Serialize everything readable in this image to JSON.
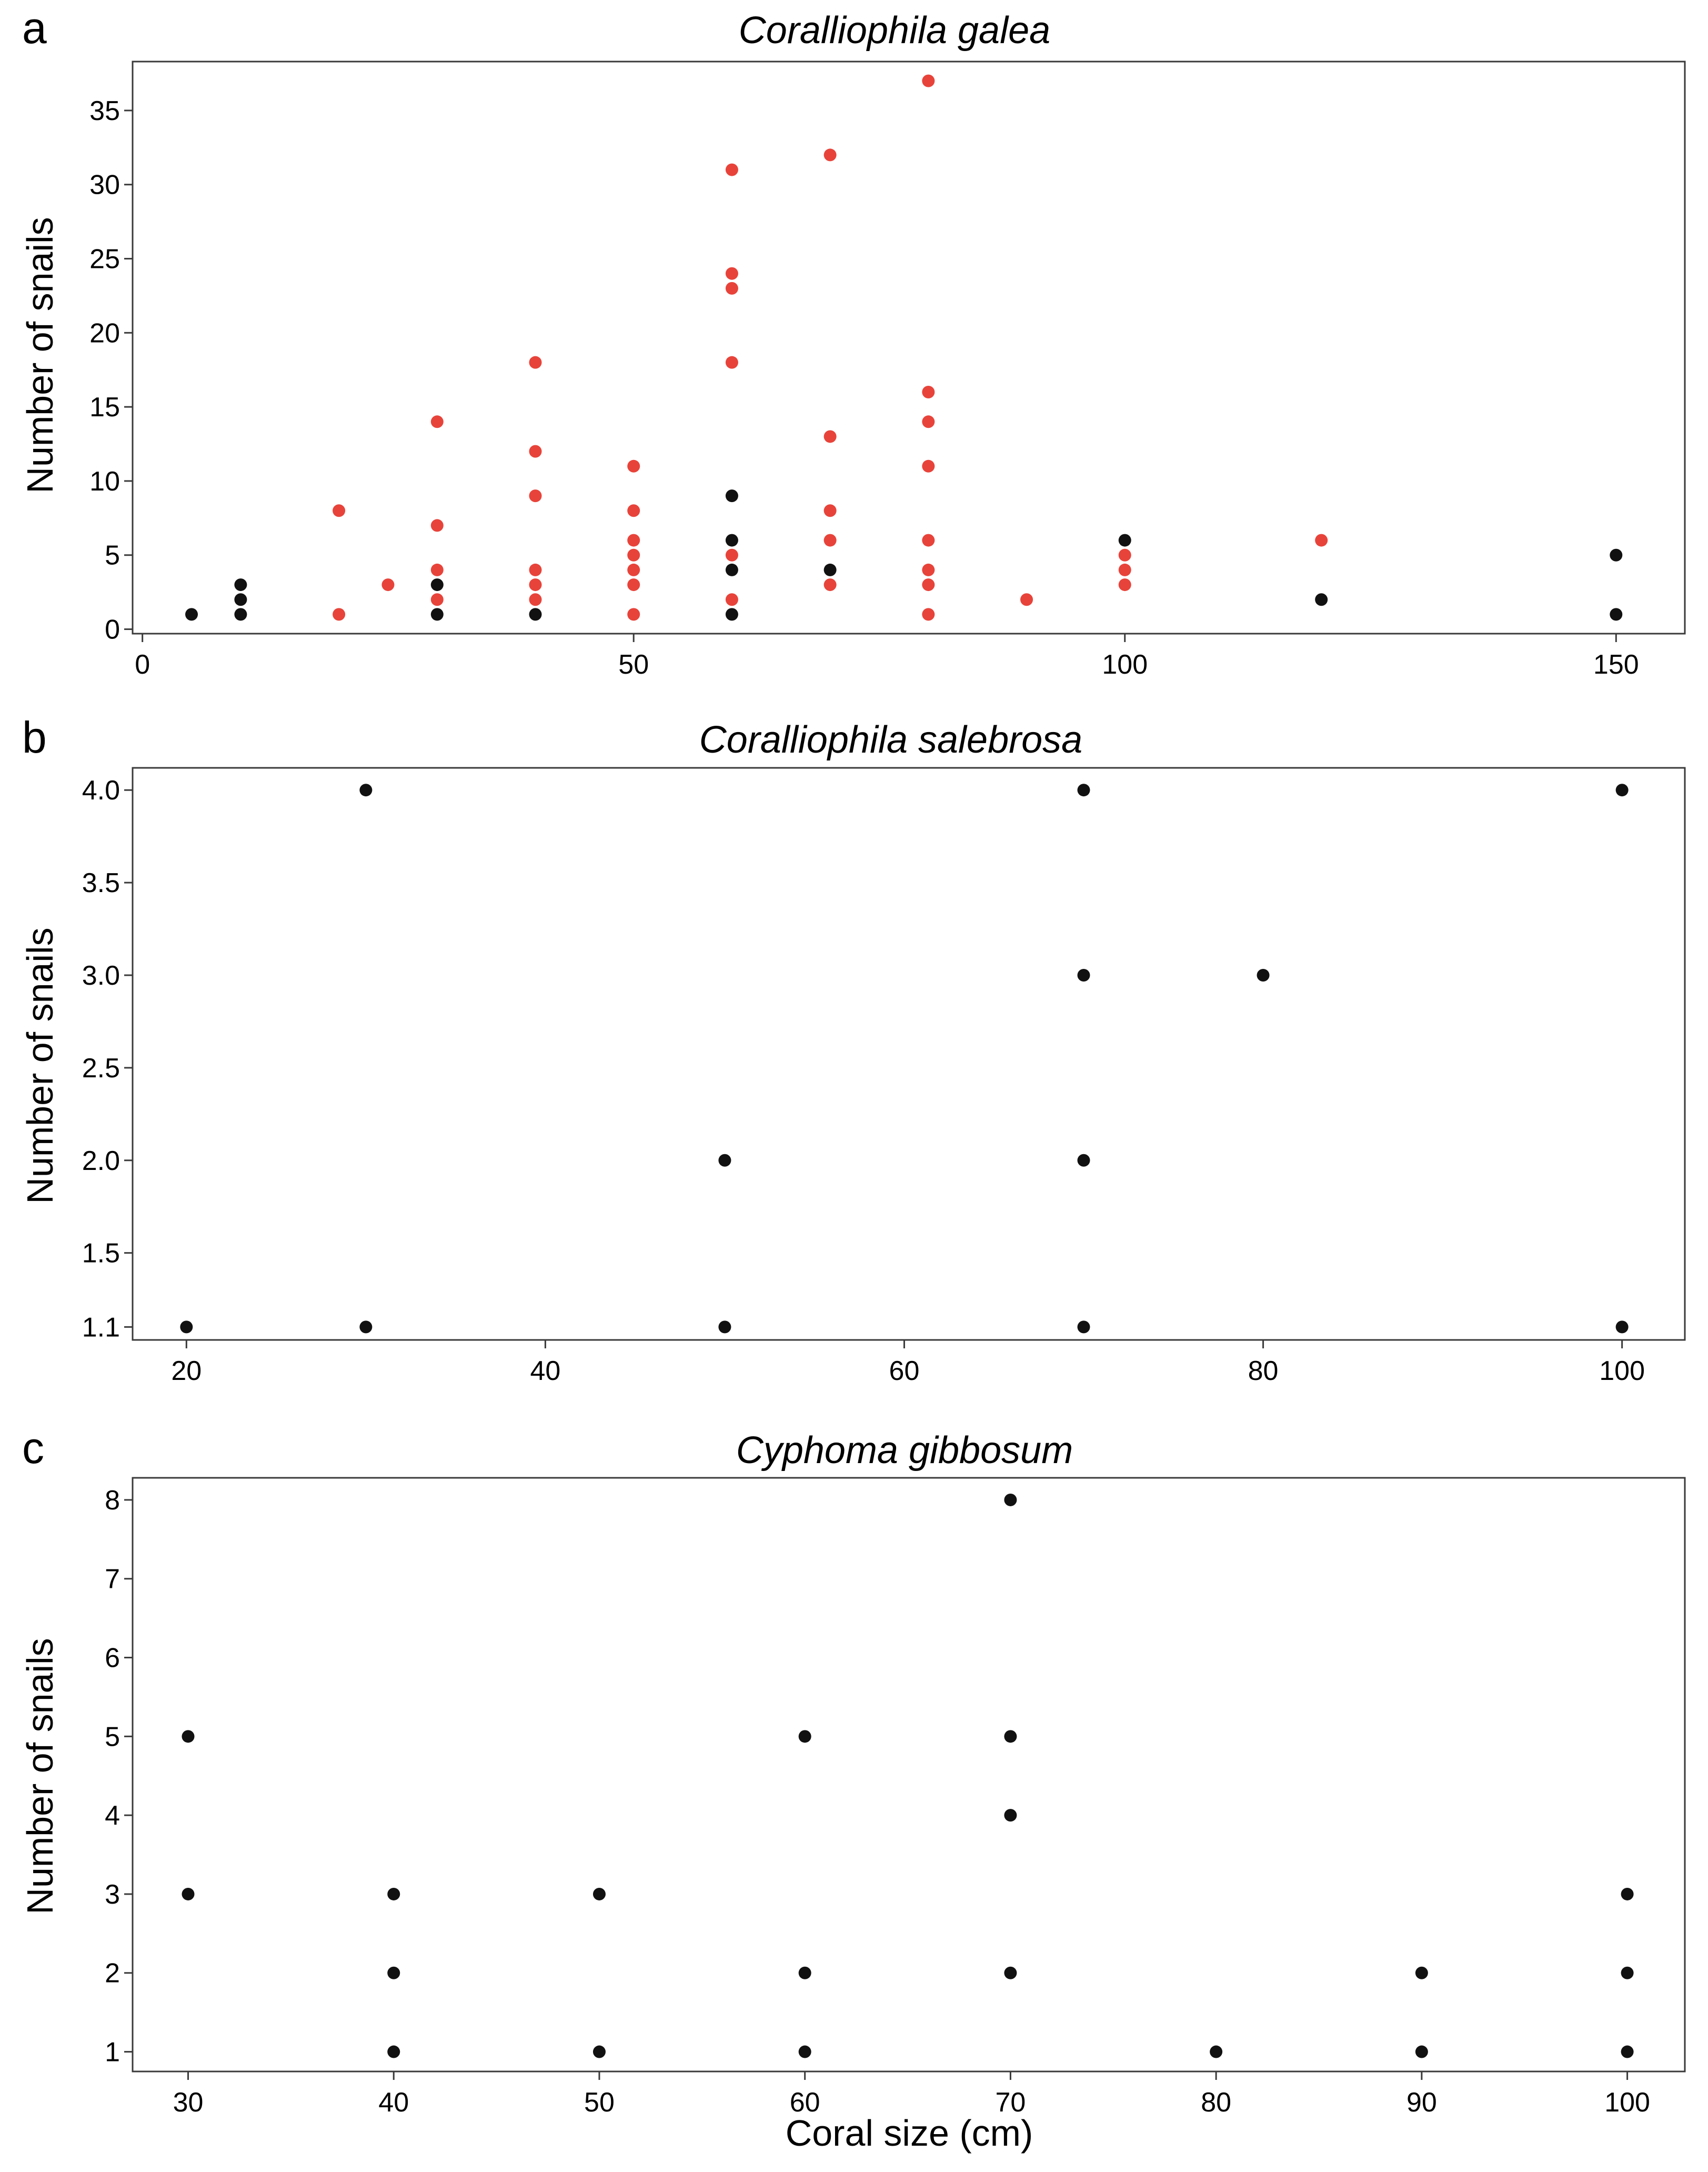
{
  "colors": {
    "red": "#e8433a",
    "black": "#111111"
  },
  "chart_data": [
    {
      "type": "scatter",
      "panel": "a",
      "title": "Coralliophila galea",
      "xlabel": "",
      "ylabel": "Number of snails",
      "xlim": [
        -1,
        157
      ],
      "ylim": [
        -0.3,
        38.3
      ],
      "xticks": [
        0,
        50,
        100,
        150
      ],
      "xtick_labels": [
        "0",
        "50",
        "100",
        "150"
      ],
      "yticks": [
        0,
        5,
        10,
        15,
        20,
        25,
        30,
        35
      ],
      "ytick_labels": [
        "0",
        "5",
        "10",
        "15",
        "20",
        "25",
        "30",
        "35"
      ],
      "series": [
        {
          "name": "red",
          "color": "#e8433a",
          "points": [
            [
              20,
              1
            ],
            [
              20,
              8
            ],
            [
              25,
              3
            ],
            [
              30,
              2
            ],
            [
              30,
              4
            ],
            [
              30,
              7
            ],
            [
              30,
              14
            ],
            [
              40,
              2
            ],
            [
              40,
              3
            ],
            [
              40,
              4
            ],
            [
              40,
              9
            ],
            [
              40,
              12
            ],
            [
              40,
              18
            ],
            [
              50,
              1
            ],
            [
              50,
              3
            ],
            [
              50,
              4
            ],
            [
              50,
              5
            ],
            [
              50,
              6
            ],
            [
              50,
              8
            ],
            [
              50,
              11
            ],
            [
              60,
              2
            ],
            [
              60,
              5
            ],
            [
              60,
              18
            ],
            [
              60,
              23
            ],
            [
              60,
              24
            ],
            [
              60,
              31
            ],
            [
              70,
              3
            ],
            [
              70,
              6
            ],
            [
              70,
              8
            ],
            [
              70,
              13
            ],
            [
              70,
              32
            ],
            [
              80,
              1
            ],
            [
              80,
              3
            ],
            [
              80,
              4
            ],
            [
              80,
              6
            ],
            [
              80,
              11
            ],
            [
              80,
              14
            ],
            [
              80,
              16
            ],
            [
              80,
              37
            ],
            [
              90,
              2
            ],
            [
              100,
              3
            ],
            [
              100,
              4
            ],
            [
              100,
              5
            ],
            [
              120,
              6
            ]
          ]
        },
        {
          "name": "black",
          "color": "#111111",
          "points": [
            [
              5,
              1
            ],
            [
              10,
              1
            ],
            [
              10,
              2
            ],
            [
              10,
              3
            ],
            [
              30,
              1
            ],
            [
              30,
              3
            ],
            [
              40,
              1
            ],
            [
              60,
              1
            ],
            [
              60,
              4
            ],
            [
              60,
              6
            ],
            [
              60,
              9
            ],
            [
              70,
              4
            ],
            [
              100,
              6
            ],
            [
              120,
              2
            ],
            [
              150,
              1
            ],
            [
              150,
              5
            ]
          ]
        }
      ]
    },
    {
      "type": "scatter",
      "panel": "b",
      "title": "Coralliophila salebrosa",
      "xlabel": "",
      "ylabel": "Number of snails",
      "xlim": [
        17,
        103.5
      ],
      "ylim": [
        1.03,
        4.12
      ],
      "xticks": [
        20,
        40,
        60,
        80,
        100
      ],
      "xtick_labels": [
        "20",
        "40",
        "60",
        "80",
        "100"
      ],
      "yticks": [
        1.1,
        1.5,
        2.0,
        2.5,
        3.0,
        3.5,
        4.0
      ],
      "ytick_labels": [
        "1.1",
        "1.5",
        "2.0",
        "2.5",
        "3.0",
        "3.5",
        "4.0"
      ],
      "series": [
        {
          "name": "black",
          "color": "#111111",
          "points": [
            [
              20,
              1.1
            ],
            [
              30,
              1.1
            ],
            [
              30,
              4.0
            ],
            [
              50,
              1.1
            ],
            [
              50,
              2.0
            ],
            [
              70,
              1.1
            ],
            [
              70,
              2.0
            ],
            [
              70,
              3.0
            ],
            [
              70,
              4.0
            ],
            [
              80,
              3.0
            ],
            [
              100,
              1.1
            ],
            [
              100,
              4.0
            ]
          ]
        }
      ]
    },
    {
      "type": "scatter",
      "panel": "c",
      "title": "Cyphoma gibbosum",
      "xlabel": "Coral size (cm)",
      "ylabel": "Number of snails",
      "xlim": [
        27.3,
        102.8
      ],
      "ylim": [
        0.75,
        8.28
      ],
      "xticks": [
        30,
        40,
        50,
        60,
        70,
        80,
        90,
        100
      ],
      "xtick_labels": [
        "30",
        "40",
        "50",
        "60",
        "70",
        "80",
        "90",
        "100"
      ],
      "yticks": [
        1,
        2,
        3,
        4,
        5,
        6,
        7,
        8
      ],
      "ytick_labels": [
        "1",
        "2",
        "3",
        "4",
        "5",
        "6",
        "7",
        "8"
      ],
      "series": [
        {
          "name": "black",
          "color": "#111111",
          "points": [
            [
              30,
              3
            ],
            [
              30,
              5
            ],
            [
              40,
              1
            ],
            [
              40,
              2
            ],
            [
              40,
              3
            ],
            [
              50,
              1
            ],
            [
              50,
              3
            ],
            [
              60,
              1
            ],
            [
              60,
              2
            ],
            [
              60,
              5
            ],
            [
              70,
              2
            ],
            [
              70,
              4
            ],
            [
              70,
              5
            ],
            [
              70,
              8
            ],
            [
              80,
              1
            ],
            [
              90,
              1
            ],
            [
              90,
              2
            ],
            [
              100,
              1
            ],
            [
              100,
              2
            ],
            [
              100,
              3
            ]
          ]
        }
      ]
    }
  ]
}
